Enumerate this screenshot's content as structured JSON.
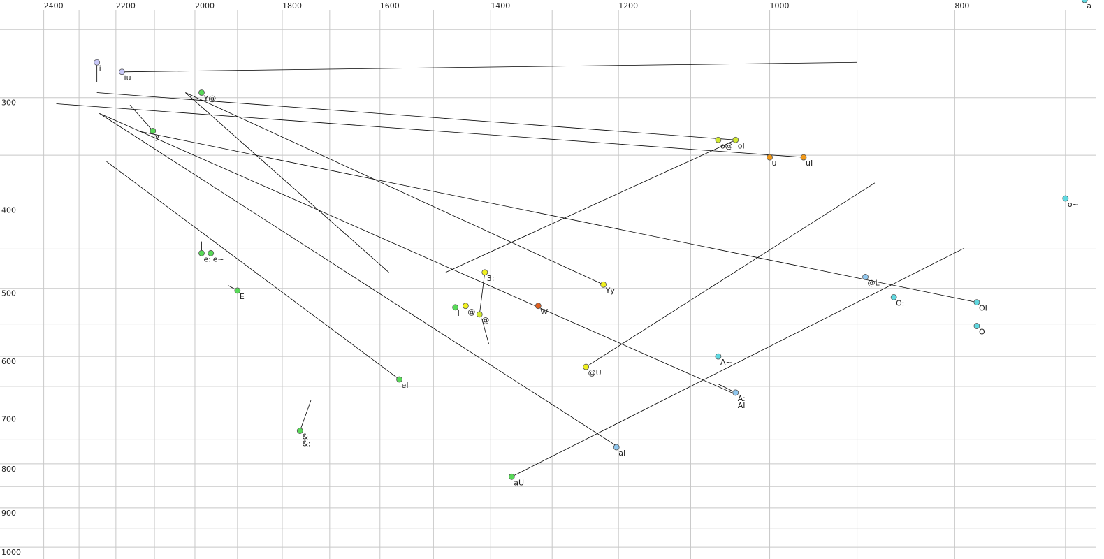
{
  "chart_data": {
    "type": "scatter",
    "xscale": "log",
    "yscale": "log",
    "grid": true,
    "xlim": [
      2530,
      675
    ],
    "ylim": [
      231,
      1032
    ],
    "xticks": [
      2400,
      2200,
      2000,
      1800,
      1600,
      1400,
      1200,
      1000,
      800
    ],
    "xminor": [
      2300,
      2100,
      1900,
      1700,
      1500,
      1300,
      1100,
      900,
      700
    ],
    "yticks": [
      300,
      400,
      500,
      600,
      700,
      800,
      900,
      1000
    ],
    "yminor": [
      250,
      350,
      450,
      550,
      650,
      750,
      850,
      950
    ],
    "labels": [
      "i",
      "iu",
      "y",
      "Y@",
      "e:",
      "e~",
      "E",
      "eI",
      "&",
      "&:",
      "I",
      "@",
      "@",
      "3:",
      "W",
      "Yy",
      "@U",
      "aI",
      "aU",
      "o@",
      "oI",
      "u",
      "uI",
      "o~",
      "@L",
      "O:",
      "OI",
      "O",
      "A~",
      "A:",
      "AI",
      "a"
    ],
    "x": [
      2251,
      2184,
      2104,
      1984,
      1984,
      1962,
      1900,
      1563,
      1762,
      1762,
      1461,
      1443,
      1419,
      1410,
      1322,
      1222,
      1248,
      1203,
      1365,
      1064,
      1042,
      1000,
      960,
      700,
      891,
      861,
      779,
      779,
      1064,
      1042,
      1042,
      684
    ],
    "values": [
      273,
      280,
      328,
      296,
      455,
      455,
      503,
      638,
      732,
      732,
      526,
      524,
      536,
      479,
      524,
      495,
      617,
      765,
      828,
      336,
      336,
      352,
      352,
      393,
      485,
      512,
      519,
      553,
      600,
      661,
      661,
      231
    ],
    "colors": [
      "#c8c8f8",
      "#c8c8f8",
      "#58d858",
      "#58d858",
      "#58d858",
      "#58d858",
      "#58d858",
      "#58d858",
      "#58d858",
      "#58d858",
      "#58d858",
      "#f0f020",
      "#d0e830",
      "#f0f020",
      "#e06020",
      "#f0f020",
      "#f0f020",
      "#90c8f0",
      "#58d858",
      "#d0e830",
      "#d0e830",
      "#f09818",
      "#f09818",
      "#60d8e0",
      "#90c8f0",
      "#60d8e0",
      "#60d8e0",
      "#60d8e0",
      "#60d8e0",
      "#90c8f0",
      "#90c8f0",
      "#60d8e0"
    ],
    "line_color": "#000000",
    "trajectories": {
      "f2": [
        [
          2184,
          900
        ],
        [
          2251,
          2251
        ],
        [
          2251,
          1042
        ],
        [
          2364,
          960
        ],
        [
          2244,
          1200
        ],
        [
          2244,
          1042
        ],
        [
          2163,
          2104
        ],
        [
          2144,
          779
        ],
        [
          2023,
          1583
        ],
        [
          2023,
          1222
        ],
        [
          2225,
          1563
        ],
        [
          1984,
          1984
        ],
        [
          1922,
          1900
        ],
        [
          1739,
          1762
        ],
        [
          1478,
          1042
        ],
        [
          1248,
          881
        ],
        [
          1365,
          791
        ],
        [
          1410,
          1419
        ],
        [
          1415,
          1403
        ],
        [
          1064,
          1042
        ]
      ],
      "f1": [
        [
          280,
          273
        ],
        [
          271,
          288
        ],
        [
          296,
          336
        ],
        [
          305,
          352
        ],
        [
          313,
          765
        ],
        [
          313,
          664
        ],
        [
          306,
          328
        ],
        [
          328,
          519
        ],
        [
          296,
          479
        ],
        [
          296,
          495
        ],
        [
          356,
          638
        ],
        [
          441,
          455
        ],
        [
          496,
          503
        ],
        [
          675,
          732
        ],
        [
          479,
          336
        ],
        [
          617,
          377
        ],
        [
          828,
          449
        ],
        [
          479,
          536
        ],
        [
          542,
          581
        ],
        [
          646,
          661
        ]
      ]
    }
  }
}
